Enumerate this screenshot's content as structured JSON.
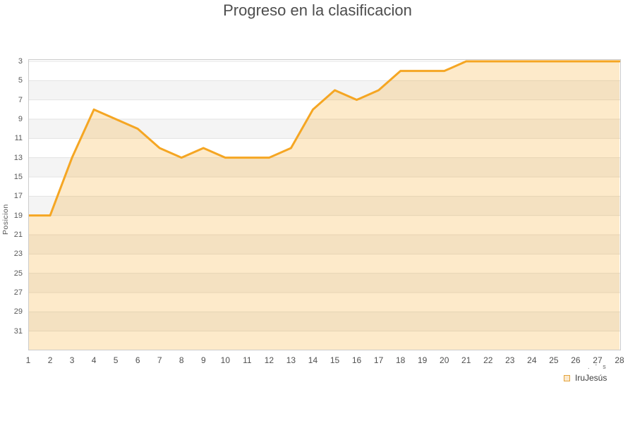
{
  "title": "Progreso en la clasificacion",
  "y_axis_label": "Posicion",
  "legend": {
    "label": "IruJesús"
  },
  "axis_fragment": ". ' s",
  "colors": {
    "line": "#f5a623",
    "area_fill": "rgba(245,166,35,0.24)",
    "stripe_gray": "#f4f4f4",
    "stripe_white": "#ffffff",
    "grid": "#e3e3e3",
    "border": "#cccccc",
    "legend_swatch_fill": "#fbe9ce",
    "legend_swatch_border": "#e3a43c",
    "text": "#555555"
  },
  "chart_data": {
    "type": "area",
    "title": "Progreso en la clasificacion",
    "xlabel": "",
    "ylabel": "Posicion",
    "x": [
      1,
      2,
      3,
      4,
      5,
      6,
      7,
      8,
      9,
      10,
      11,
      12,
      13,
      14,
      15,
      16,
      17,
      18,
      19,
      20,
      21,
      22,
      23,
      24,
      25,
      26,
      27,
      28
    ],
    "series": [
      {
        "name": "IruJesús",
        "values": [
          19,
          19,
          13,
          8,
          9,
          10,
          12,
          13,
          12,
          13,
          13,
          13,
          12,
          8,
          6,
          7,
          6,
          4,
          4,
          4,
          3,
          3,
          3,
          3,
          3,
          3,
          3,
          3
        ]
      }
    ],
    "y_ticks": [
      3,
      5,
      7,
      9,
      11,
      13,
      15,
      17,
      19,
      21,
      23,
      25,
      27,
      29,
      31
    ],
    "y_inverted": true,
    "ylim": [
      3,
      33
    ],
    "xlim": [
      1,
      28
    ],
    "grid": "horizontal-stripes",
    "legend_position": "bottom-right"
  }
}
